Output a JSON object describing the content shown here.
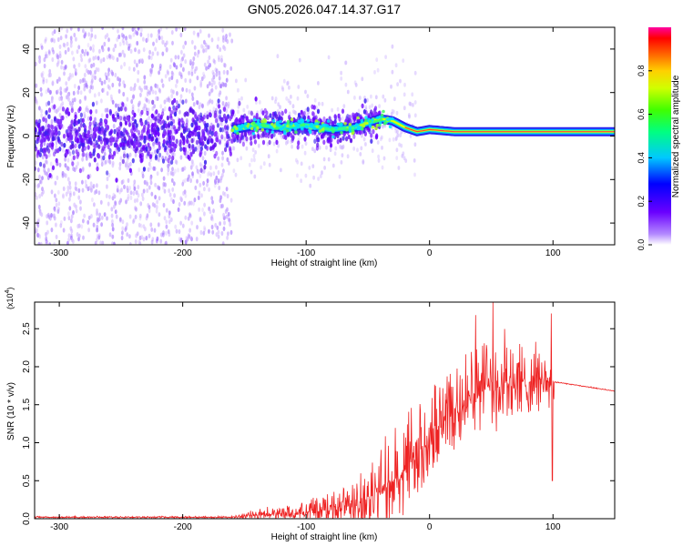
{
  "title": "GN05.2026.047.14.37.G17",
  "spectrogram": {
    "type": "heatmap",
    "xlabel": "Height of straight line (km)",
    "ylabel": "Frequency (Hz)",
    "xlim": [
      -320,
      150
    ],
    "ylim": [
      -50,
      50
    ],
    "xticks": [
      -300,
      -200,
      -100,
      0,
      100
    ],
    "yticks": [
      -40,
      -20,
      0,
      20,
      40
    ],
    "colorbar": {
      "label": "Normalized spectral amplitude",
      "range": [
        0.0,
        1.0
      ],
      "ticks": [
        0.0,
        0.2,
        0.4,
        0.6,
        0.8
      ],
      "tick_labels": [
        "0.0",
        "0.2",
        "0.4",
        "0.6",
        "0.8"
      ]
    },
    "ridge": {
      "x": [
        -320,
        -250,
        -180,
        -160,
        -140,
        -120,
        -100,
        -80,
        -60,
        -50,
        -40,
        -30,
        -20,
        -10,
        0,
        20,
        50,
        100,
        150
      ],
      "freq": [
        0,
        0,
        1,
        3,
        5,
        4,
        5,
        3,
        4,
        6,
        8,
        7,
        4,
        2,
        3,
        2,
        2,
        2,
        2
      ]
    }
  },
  "snr_plot": {
    "type": "line",
    "xlabel": "Height of straight line (km)",
    "ylabel": "SNR (10 * v/v)",
    "scale_label": "(x10",
    "scale_exp": "4",
    "scale_close": ")",
    "xlim": [
      -320,
      150
    ],
    "ylim": [
      0,
      2.85
    ],
    "xticks": [
      -300,
      -200,
      -100,
      0,
      100
    ],
    "yticks": [
      0.0,
      0.5,
      1.0,
      1.5,
      2.0,
      2.5
    ],
    "ytick_labels": [
      "0.0",
      "0.5",
      "1.0",
      "1.5",
      "2.0",
      "2.5"
    ],
    "line_color": "#ee2222",
    "envelope": {
      "x": [
        -320,
        -160,
        -140,
        -100,
        -60,
        -40,
        -20,
        -10,
        0,
        10,
        30,
        50,
        70,
        90,
        100,
        110,
        150
      ],
      "mean": [
        0.02,
        0.02,
        0.05,
        0.08,
        0.18,
        0.35,
        0.6,
        0.85,
        1.05,
        1.3,
        1.6,
        1.75,
        1.8,
        1.8,
        1.8,
        1.78,
        1.68
      ],
      "noise": [
        0.01,
        0.01,
        0.06,
        0.12,
        0.3,
        0.5,
        0.55,
        0.5,
        0.45,
        0.45,
        0.55,
        0.6,
        0.5,
        0.35,
        0.3,
        0.0,
        0.0
      ]
    }
  },
  "chart_data": [
    {
      "type": "heatmap",
      "title": "GN05.2026.047.14.37.G17",
      "xlabel": "Height of straight line (km)",
      "ylabel": "Frequency (Hz)",
      "xlim": [
        -320,
        150
      ],
      "ylim": [
        -50,
        50
      ],
      "colorbar_label": "Normalized spectral amplitude",
      "colorbar_range": [
        0.0,
        1.0
      ]
    },
    {
      "type": "line",
      "xlabel": "Height of straight line (km)",
      "ylabel": "SNR (10 * v/v)",
      "xlim": [
        -320,
        150
      ],
      "ylim": [
        0,
        2.85
      ],
      "series": [
        {
          "x": [
            -320,
            -200,
            -160,
            -140,
            -100,
            -60,
            -40,
            -20,
            0,
            20,
            50,
            70,
            90,
            100,
            110,
            150
          ],
          "values": [
            0.02,
            0.02,
            0.02,
            0.05,
            0.08,
            0.2,
            0.4,
            0.7,
            1.1,
            1.4,
            1.8,
            1.8,
            1.8,
            1.8,
            1.78,
            1.68
          ]
        }
      ]
    }
  ]
}
